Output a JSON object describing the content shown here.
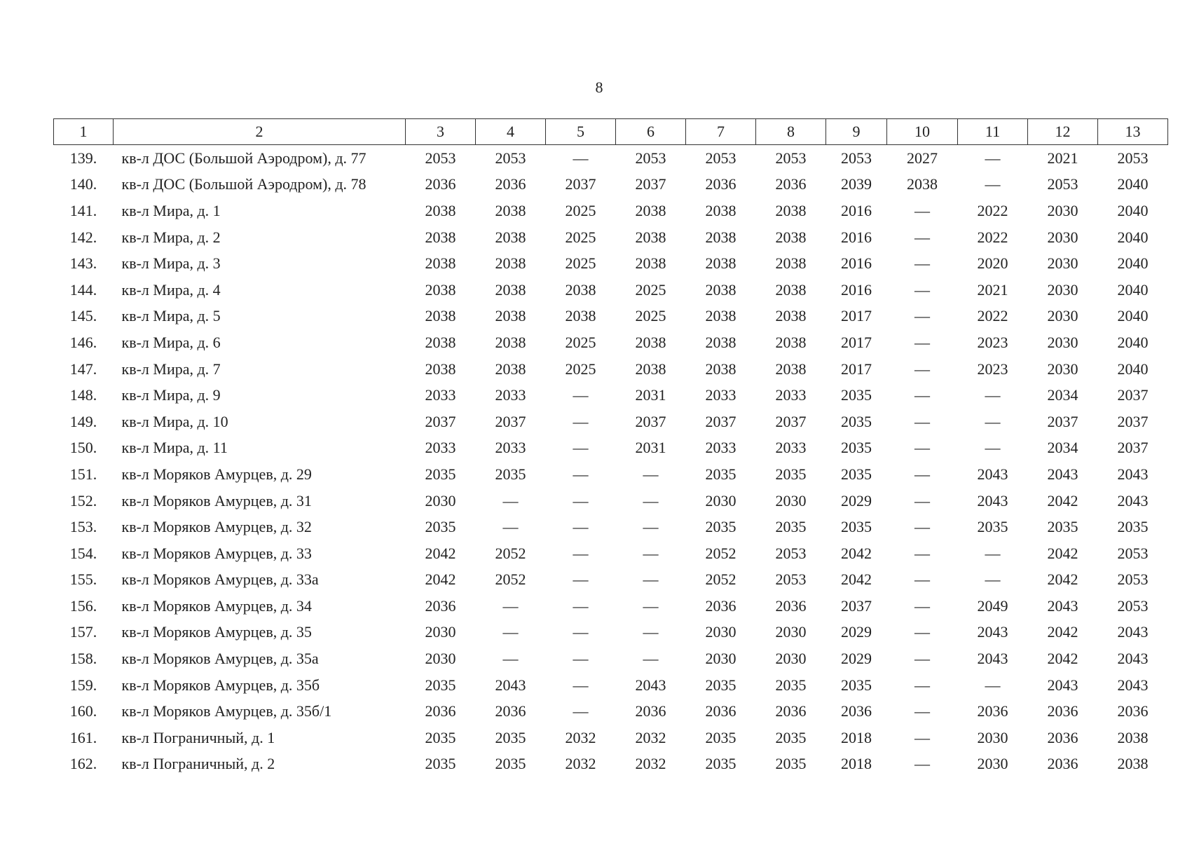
{
  "page_number": "8",
  "table": {
    "header": [
      "1",
      "2",
      "3",
      "4",
      "5",
      "6",
      "7",
      "8",
      "9",
      "10",
      "11",
      "12",
      "13"
    ],
    "rows": [
      [
        "139.",
        "кв-л ДОС (Большой Аэродром), д. 77",
        "2053",
        "2053",
        "—",
        "2053",
        "2053",
        "2053",
        "2053",
        "2027",
        "—",
        "2021",
        "2053"
      ],
      [
        "140.",
        "кв-л ДОС (Большой Аэродром), д. 78",
        "2036",
        "2036",
        "2037",
        "2037",
        "2036",
        "2036",
        "2039",
        "2038",
        "—",
        "2053",
        "2040"
      ],
      [
        "141.",
        "кв-л Мира, д. 1",
        "2038",
        "2038",
        "2025",
        "2038",
        "2038",
        "2038",
        "2016",
        "—",
        "2022",
        "2030",
        "2040"
      ],
      [
        "142.",
        "кв-л Мира, д. 2",
        "2038",
        "2038",
        "2025",
        "2038",
        "2038",
        "2038",
        "2016",
        "—",
        "2022",
        "2030",
        "2040"
      ],
      [
        "143.",
        "кв-л Мира, д. 3",
        "2038",
        "2038",
        "2025",
        "2038",
        "2038",
        "2038",
        "2016",
        "—",
        "2020",
        "2030",
        "2040"
      ],
      [
        "144.",
        "кв-л Мира, д. 4",
        "2038",
        "2038",
        "2038",
        "2025",
        "2038",
        "2038",
        "2016",
        "—",
        "2021",
        "2030",
        "2040"
      ],
      [
        "145.",
        "кв-л Мира, д. 5",
        "2038",
        "2038",
        "2038",
        "2025",
        "2038",
        "2038",
        "2017",
        "—",
        "2022",
        "2030",
        "2040"
      ],
      [
        "146.",
        "кв-л Мира, д. 6",
        "2038",
        "2038",
        "2025",
        "2038",
        "2038",
        "2038",
        "2017",
        "—",
        "2023",
        "2030",
        "2040"
      ],
      [
        "147.",
        "кв-л Мира, д. 7",
        "2038",
        "2038",
        "2025",
        "2038",
        "2038",
        "2038",
        "2017",
        "—",
        "2023",
        "2030",
        "2040"
      ],
      [
        "148.",
        "кв-л Мира, д. 9",
        "2033",
        "2033",
        "—",
        "2031",
        "2033",
        "2033",
        "2035",
        "—",
        "—",
        "2034",
        "2037"
      ],
      [
        "149.",
        "кв-л Мира, д. 10",
        "2037",
        "2037",
        "—",
        "2037",
        "2037",
        "2037",
        "2035",
        "—",
        "—",
        "2037",
        "2037"
      ],
      [
        "150.",
        "кв-л Мира, д. 11",
        "2033",
        "2033",
        "—",
        "2031",
        "2033",
        "2033",
        "2035",
        "—",
        "—",
        "2034",
        "2037"
      ],
      [
        "151.",
        "кв-л Моряков Амурцев, д. 29",
        "2035",
        "2035",
        "—",
        "—",
        "2035",
        "2035",
        "2035",
        "—",
        "2043",
        "2043",
        "2043"
      ],
      [
        "152.",
        "кв-л Моряков Амурцев, д. 31",
        "2030",
        "—",
        "—",
        "—",
        "2030",
        "2030",
        "2029",
        "—",
        "2043",
        "2042",
        "2043"
      ],
      [
        "153.",
        "кв-л Моряков Амурцев, д. 32",
        "2035",
        "—",
        "—",
        "—",
        "2035",
        "2035",
        "2035",
        "—",
        "2035",
        "2035",
        "2035"
      ],
      [
        "154.",
        "кв-л Моряков Амурцев, д. 33",
        "2042",
        "2052",
        "—",
        "—",
        "2052",
        "2053",
        "2042",
        "—",
        "—",
        "2042",
        "2053"
      ],
      [
        "155.",
        "кв-л Моряков Амурцев, д. 33а",
        "2042",
        "2052",
        "—",
        "—",
        "2052",
        "2053",
        "2042",
        "—",
        "—",
        "2042",
        "2053"
      ],
      [
        "156.",
        "кв-л Моряков Амурцев, д. 34",
        "2036",
        "—",
        "—",
        "—",
        "2036",
        "2036",
        "2037",
        "—",
        "2049",
        "2043",
        "2053"
      ],
      [
        "157.",
        "кв-л Моряков Амурцев, д. 35",
        "2030",
        "—",
        "—",
        "—",
        "2030",
        "2030",
        "2029",
        "—",
        "2043",
        "2042",
        "2043"
      ],
      [
        "158.",
        "кв-л Моряков Амурцев, д. 35а",
        "2030",
        "—",
        "—",
        "—",
        "2030",
        "2030",
        "2029",
        "—",
        "2043",
        "2042",
        "2043"
      ],
      [
        "159.",
        "кв-л Моряков Амурцев, д. 35б",
        "2035",
        "2043",
        "—",
        "2043",
        "2035",
        "2035",
        "2035",
        "—",
        "—",
        "2043",
        "2043"
      ],
      [
        "160.",
        "кв-л Моряков Амурцев, д. 35б/1",
        "2036",
        "2036",
        "—",
        "2036",
        "2036",
        "2036",
        "2036",
        "—",
        "2036",
        "2036",
        "2036"
      ],
      [
        "161.",
        "кв-л Пограничный, д. 1",
        "2035",
        "2035",
        "2032",
        "2032",
        "2035",
        "2035",
        "2018",
        "—",
        "2030",
        "2036",
        "2038"
      ],
      [
        "162.",
        "кв-л Пограничный, д. 2",
        "2035",
        "2035",
        "2032",
        "2032",
        "2035",
        "2035",
        "2018",
        "—",
        "2030",
        "2036",
        "2038"
      ]
    ]
  }
}
